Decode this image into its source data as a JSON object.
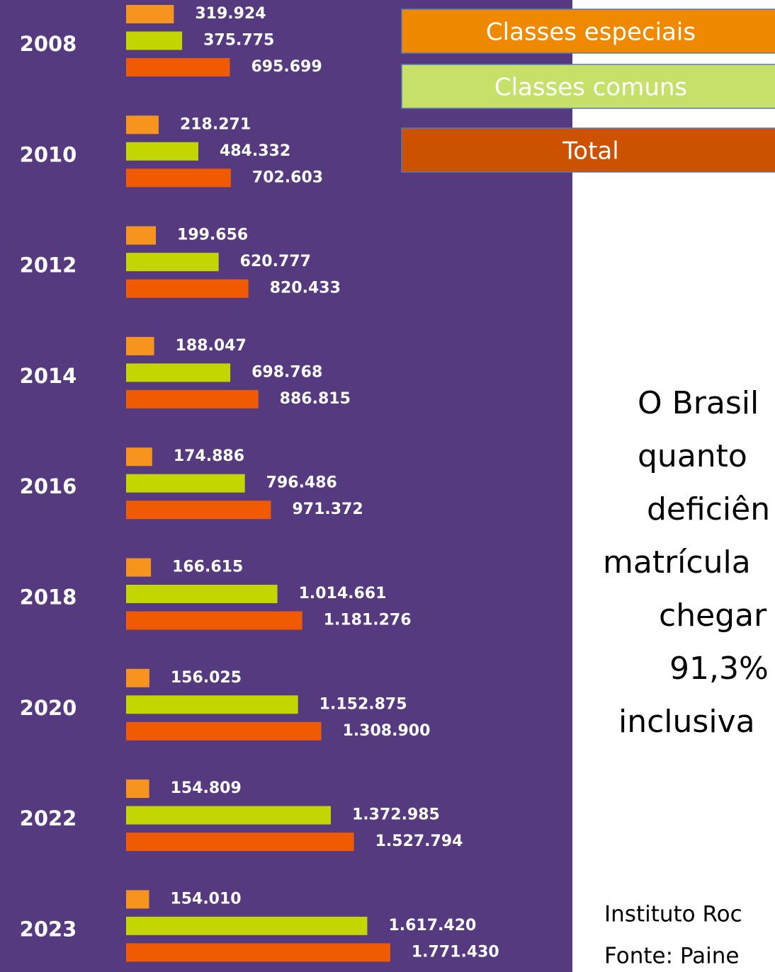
{
  "chart_data": {
    "type": "hbar",
    "categories": [
      "2008",
      "2010",
      "2012",
      "2014",
      "2016",
      "2018",
      "2020",
      "2022",
      "2023"
    ],
    "xlim": [
      0,
      2000000
    ],
    "series": [
      {
        "name": "Classes especiais",
        "color": "#f7941d",
        "legend_color": "#ef8a00",
        "values": [
          319924,
          218271,
          199656,
          188047,
          174886,
          166615,
          156025,
          154809,
          154010
        ],
        "value_labels": [
          "319.924",
          "218.271",
          "199.656",
          "188.047",
          "174.886",
          "166.615",
          "156.025",
          "154.809",
          "154.010"
        ]
      },
      {
        "name": "Classes comuns",
        "color": "#c4d600",
        "legend_color": "#c6e06a",
        "values": [
          375775,
          484332,
          620777,
          698768,
          796486,
          1014661,
          1152875,
          1372985,
          1617420
        ],
        "value_labels": [
          "375.775",
          "484.332",
          "620.777",
          "698.768",
          "796.486",
          "1.014.661",
          "1.152.875",
          "1.372.985",
          "1.617.420"
        ]
      },
      {
        "name": "Total",
        "color": "#f05a00",
        "legend_color": "#cc5200",
        "values": [
          695699,
          702603,
          820433,
          886815,
          971372,
          1181276,
          1308900,
          1527794,
          1771430
        ],
        "value_labels": [
          "695.699",
          "702.603",
          "820.433",
          "886.815",
          "971.372",
          "1.181.276",
          "1.308.900",
          "1.527.794",
          "1.771.430"
        ]
      }
    ]
  },
  "text": {
    "lines": [
      "O Brasil",
      "quanto",
      "deficiên",
      "matrícula",
      "chegar",
      "91,3%",
      "inclusiva"
    ],
    "footer": [
      "Instituto Roc",
      "Fonte: Paine"
    ]
  }
}
